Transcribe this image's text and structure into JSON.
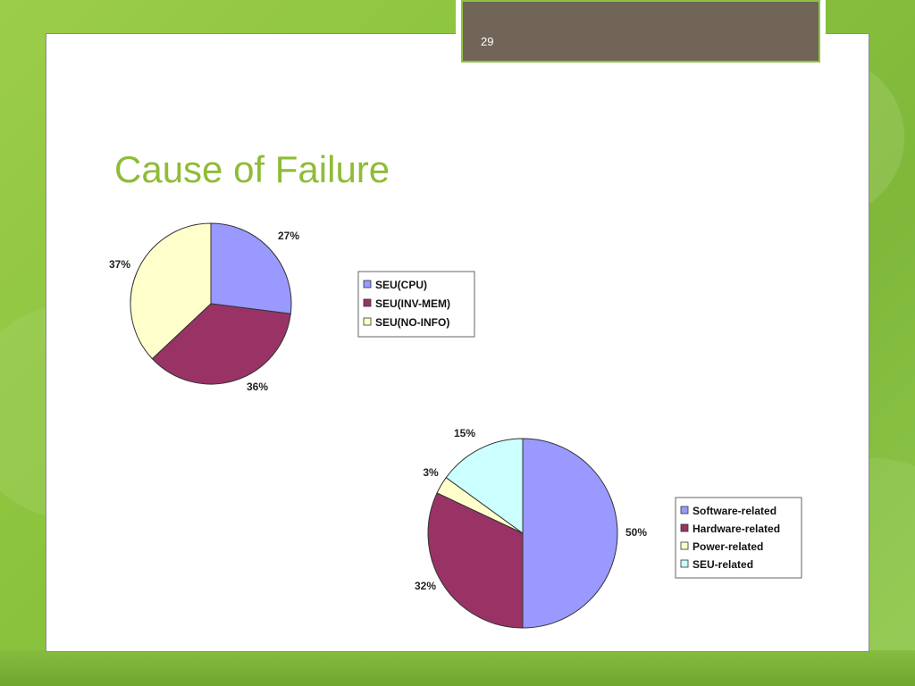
{
  "page_number": "29",
  "title": "Cause of Failure",
  "chart_data": [
    {
      "type": "pie",
      "title": "",
      "slices": [
        {
          "label": "SEU(CPU)",
          "value": 27,
          "display": "27%",
          "color": "#9999ff"
        },
        {
          "label": "SEU(INV-MEM)",
          "value": 36,
          "display": "36%",
          "color": "#993366"
        },
        {
          "label": "SEU(NO-INFO)",
          "value": 37,
          "display": "37%",
          "color": "#ffffcc"
        }
      ],
      "legend": "right"
    },
    {
      "type": "pie",
      "title": "",
      "slices": [
        {
          "label": "Software-related",
          "value": 50,
          "display": "50%",
          "color": "#9999ff"
        },
        {
          "label": "Hardware-related",
          "value": 32,
          "display": "32%",
          "color": "#993366"
        },
        {
          "label": "Power-related",
          "value": 3,
          "display": "3%",
          "color": "#ffffcc"
        },
        {
          "label": "SEU-related",
          "value": 15,
          "display": "15%",
          "color": "#ccffff"
        }
      ],
      "legend": "right"
    }
  ]
}
